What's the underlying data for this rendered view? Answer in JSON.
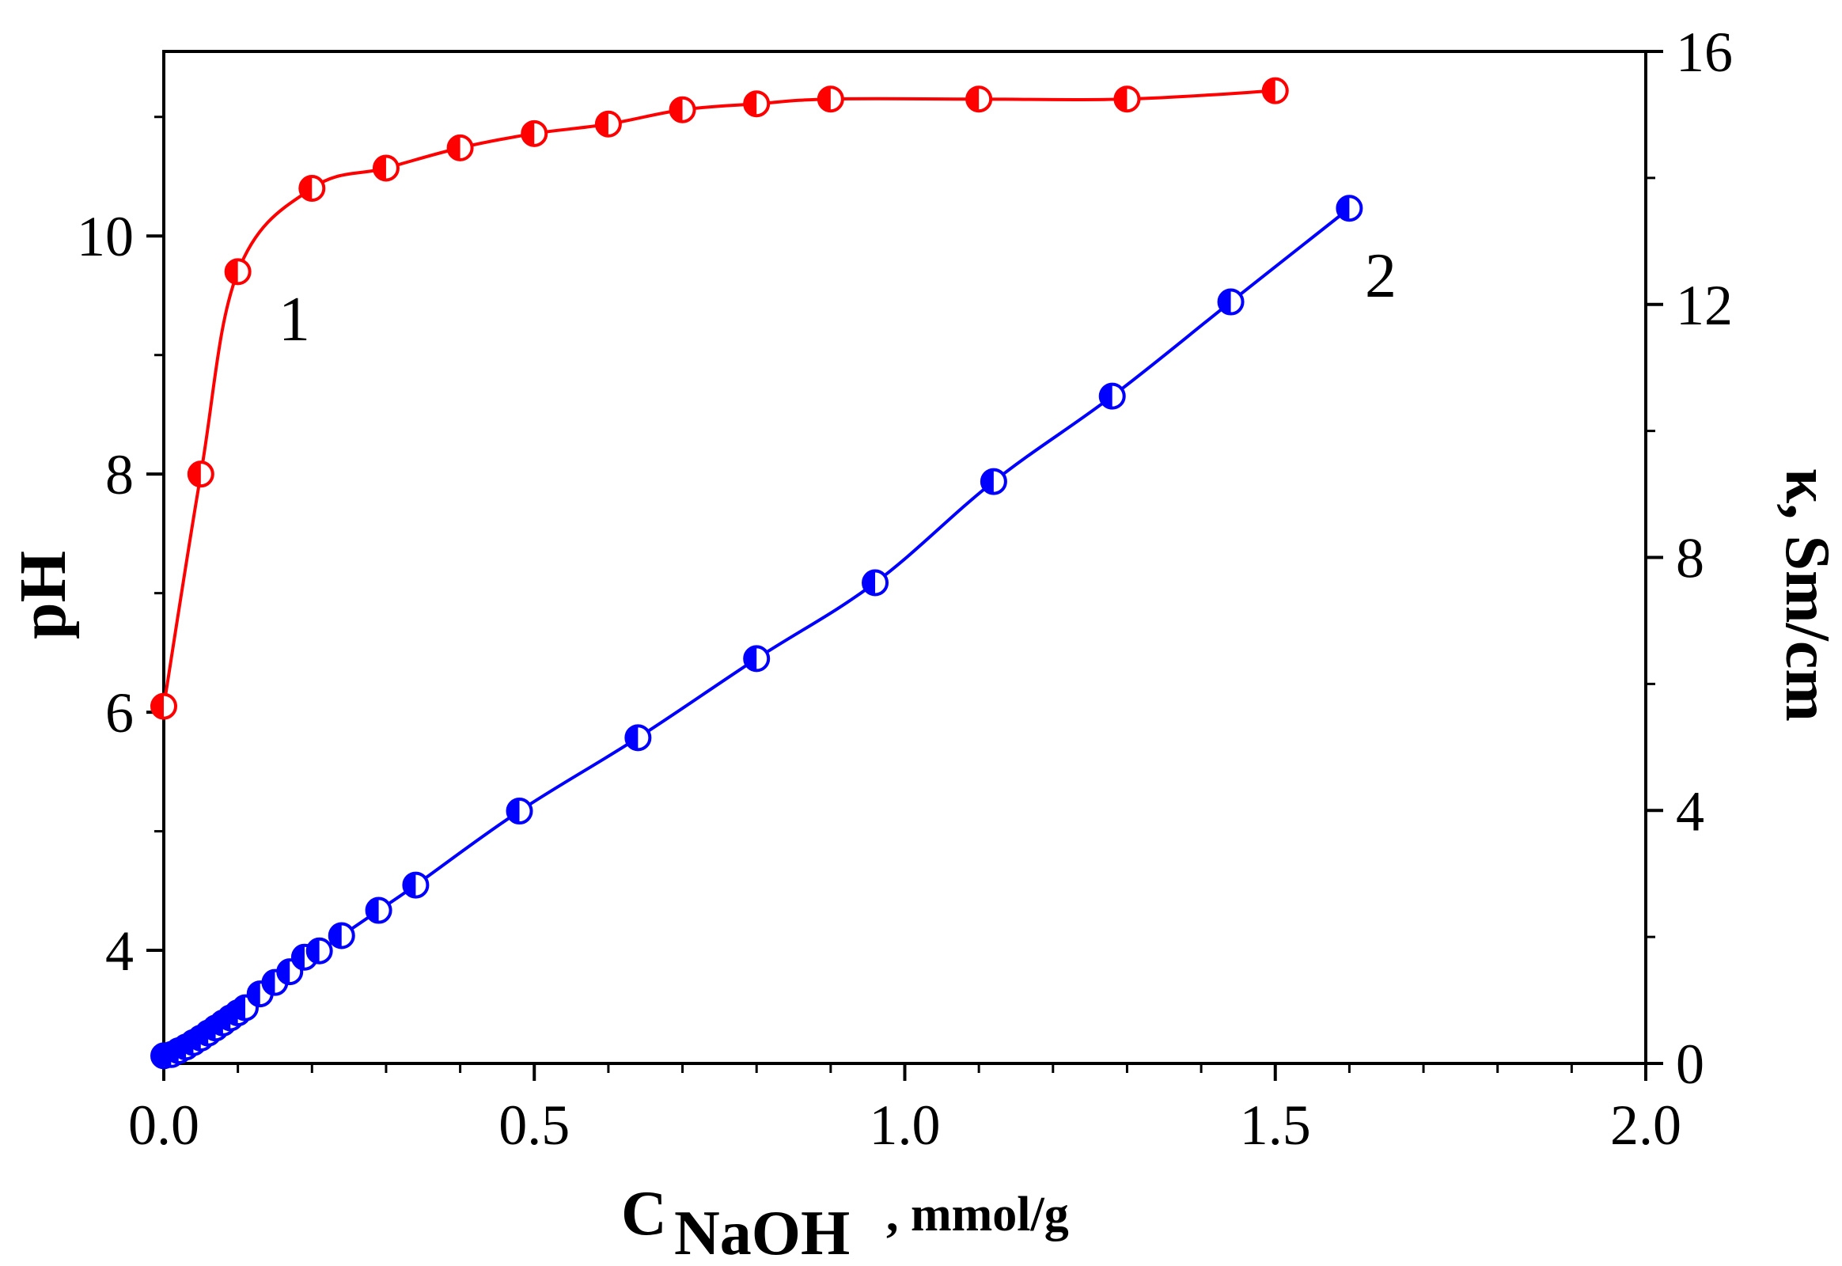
{
  "chart_data": {
    "type": "line",
    "title": "",
    "xlabel": {
      "main": "C",
      "subscript": "NaOH",
      "unit": ", mmol/g"
    },
    "ylabel_left": "pH",
    "ylabel_right": "κ, Sm/cm",
    "xlim": [
      0,
      2.0
    ],
    "ylim_left": [
      3.05,
      11.55
    ],
    "ylim_right": [
      0,
      16
    ],
    "x_ticks": [
      0.0,
      0.5,
      1.0,
      1.5,
      2.0
    ],
    "x_tick_labels": [
      "0.0",
      "0.5",
      "1.0",
      "1.5",
      "2.0"
    ],
    "y_left_ticks": [
      4,
      6,
      8,
      10
    ],
    "y_left_tick_labels": [
      "4",
      "6",
      "8",
      "10"
    ],
    "y_right_ticks": [
      0,
      4,
      8,
      12,
      16
    ],
    "y_right_tick_labels": [
      "0",
      "4",
      "8",
      "12",
      "16"
    ],
    "grid": false,
    "series": [
      {
        "name": "1",
        "axis": "left",
        "color": "#ff0000",
        "marker": "half-filled-circle-left",
        "x": [
          0.0,
          0.05,
          0.1,
          0.2,
          0.3,
          0.4,
          0.5,
          0.6,
          0.7,
          0.8,
          0.9,
          1.1,
          1.3,
          1.5
        ],
        "y": [
          6.05,
          8.0,
          9.7,
          10.4,
          10.57,
          10.74,
          10.86,
          10.94,
          11.06,
          11.11,
          11.15,
          11.15,
          11.15,
          11.22
        ]
      },
      {
        "name": "2",
        "axis": "right",
        "color": "#0000ff",
        "marker": "half-filled-circle-left",
        "x": [
          0.0,
          0.01,
          0.02,
          0.03,
          0.04,
          0.05,
          0.06,
          0.07,
          0.08,
          0.09,
          0.1,
          0.11,
          0.13,
          0.15,
          0.17,
          0.19,
          0.21,
          0.24,
          0.29,
          0.34,
          0.48,
          0.64,
          0.8,
          0.96,
          1.12,
          1.28,
          1.44,
          1.6
        ],
        "y": [
          0.12,
          0.14,
          0.2,
          0.26,
          0.33,
          0.4,
          0.48,
          0.56,
          0.64,
          0.72,
          0.8,
          0.88,
          1.1,
          1.28,
          1.45,
          1.68,
          1.78,
          2.02,
          2.42,
          2.82,
          3.99,
          5.15,
          6.4,
          7.6,
          9.2,
          10.55,
          12.04,
          13.52
        ]
      }
    ],
    "annotations": [
      {
        "text": "1",
        "series": "1"
      },
      {
        "text": "2",
        "series": "2"
      }
    ]
  }
}
